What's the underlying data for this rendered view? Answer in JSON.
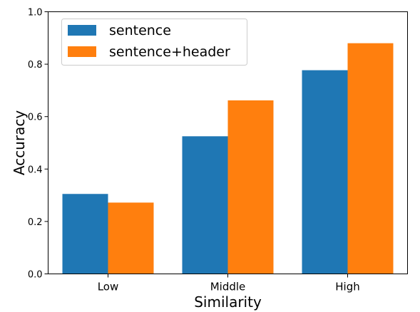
{
  "chart_data": {
    "type": "bar",
    "title": "",
    "xlabel": "Similarity",
    "ylabel": "Accuracy",
    "categories": [
      "Low",
      "Middle",
      "High"
    ],
    "series": [
      {
        "name": "sentence",
        "color": "#1f77b4",
        "values": [
          0.305,
          0.525,
          0.777
        ]
      },
      {
        "name": "sentence+header",
        "color": "#ff7f0e",
        "values": [
          0.272,
          0.662,
          0.88
        ]
      }
    ],
    "ylim": [
      0,
      1.0
    ],
    "yticks": [
      "0.0",
      "0.2",
      "0.4",
      "0.6",
      "0.8",
      "1.0"
    ],
    "grid": false,
    "legend_position": "top-left"
  }
}
